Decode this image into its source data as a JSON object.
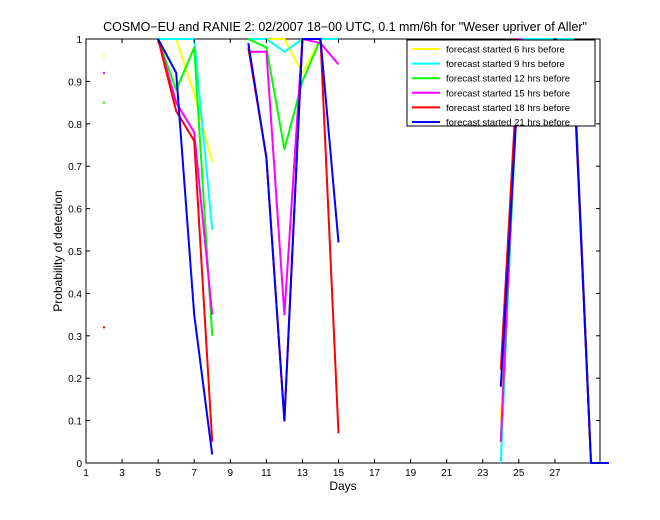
{
  "chart_data": {
    "type": "line",
    "title": "COSMO−EU and RANIE 2: 02/2007 18−00 UTC, 0.1 mm/6h for \"Weser upriver of Aller\"",
    "xlabel": "Days",
    "ylabel": "Probability of detection",
    "xlim": [
      1,
      29.5
    ],
    "ylim": [
      0,
      1
    ],
    "x_ticks": [
      1,
      3,
      5,
      7,
      9,
      11,
      13,
      15,
      17,
      19,
      21,
      23,
      25,
      27
    ],
    "y_ticks": [
      0,
      0.1,
      0.2,
      0.3,
      0.4,
      0.5,
      0.6,
      0.7,
      0.8,
      0.9,
      1
    ],
    "y_tick_labels": [
      "0",
      "0.1",
      "0.2",
      "0.3",
      "0.4",
      "0.5",
      "0.6",
      "0.7",
      "0.8",
      "0.9",
      "1"
    ],
    "grid": false,
    "legend_position": "top-right",
    "series": [
      {
        "name": "forecast started 6 hrs before",
        "color": "#ffff00",
        "segments": [
          [
            [
              2,
              0.96
            ]
          ],
          [
            [
              5,
              1.0
            ],
            [
              6,
              1.0
            ],
            [
              7,
              0.87
            ],
            [
              8,
              0.71
            ]
          ],
          [
            [
              10,
              1.0
            ],
            [
              11,
              1.0
            ],
            [
              12,
              1.0
            ],
            [
              13,
              0.92
            ],
            [
              14,
              1.0
            ],
            [
              15,
              1.0
            ]
          ],
          [
            [
              24,
              0.1
            ],
            [
              25,
              1.0
            ],
            [
              26,
              1.0
            ],
            [
              27,
              1.0
            ],
            [
              28,
              1.0
            ],
            [
              29,
              0.0
            ],
            [
              30,
              0.0
            ]
          ]
        ]
      },
      {
        "name": "forecast started 9 hrs before",
        "color": "#00ffff",
        "segments": [
          [
            [
              2,
              0.92
            ]
          ],
          [
            [
              5,
              1.0
            ],
            [
              6,
              1.0
            ],
            [
              7,
              1.0
            ],
            [
              8,
              0.55
            ]
          ],
          [
            [
              10,
              1.0
            ],
            [
              11,
              1.0
            ],
            [
              12,
              0.97
            ],
            [
              13,
              1.0
            ],
            [
              14,
              1.0
            ],
            [
              15,
              1.0
            ]
          ],
          [
            [
              24,
              0.0
            ],
            [
              25,
              1.0
            ],
            [
              26,
              1.0
            ],
            [
              27,
              1.0
            ],
            [
              28,
              1.0
            ],
            [
              29,
              0.0
            ],
            [
              30,
              0.0
            ]
          ]
        ]
      },
      {
        "name": "forecast started 12 hrs before",
        "color": "#00ff00",
        "segments": [
          [
            [
              2,
              0.85
            ]
          ],
          [
            [
              5,
              1.0
            ],
            [
              6,
              0.88
            ],
            [
              7,
              0.98
            ],
            [
              8,
              0.3
            ]
          ],
          [
            [
              10,
              1.0
            ],
            [
              11,
              0.98
            ],
            [
              12,
              0.74
            ],
            [
              13,
              0.9
            ],
            [
              14,
              1.0
            ]
          ],
          [
            [
              24,
              0.05
            ],
            [
              25,
              0.95
            ],
            [
              26,
              0.98
            ],
            [
              27,
              1.0
            ],
            [
              28,
              0.97
            ],
            [
              29,
              0.0
            ]
          ]
        ]
      },
      {
        "name": "forecast started 15 hrs before",
        "color": "#ff00ff",
        "segments": [
          [
            [
              2,
              0.92
            ]
          ],
          [
            [
              5,
              1.0
            ],
            [
              6,
              0.85
            ],
            [
              7,
              0.78
            ],
            [
              8,
              0.35
            ]
          ],
          [
            [
              10,
              0.97
            ],
            [
              11,
              0.97
            ],
            [
              12,
              0.35
            ],
            [
              13,
              1.0
            ],
            [
              14,
              0.99
            ],
            [
              15,
              0.94
            ]
          ],
          [
            [
              24,
              0.05
            ],
            [
              25,
              1.0
            ],
            [
              26,
              0.99
            ],
            [
              27,
              0.99
            ],
            [
              28,
              0.98
            ],
            [
              29,
              0.0
            ]
          ]
        ]
      },
      {
        "name": "forecast started 18 hrs before",
        "color": "#ff0000",
        "segments": [
          [
            [
              2,
              0.32
            ]
          ],
          [
            [
              5,
              1.0
            ],
            [
              6,
              0.83
            ],
            [
              7,
              0.76
            ],
            [
              8,
              0.05
            ]
          ],
          [
            [
              10,
              0.98
            ],
            [
              11,
              0.72
            ],
            [
              12,
              0.1
            ],
            [
              13,
              1.0
            ],
            [
              14,
              1.0
            ],
            [
              15,
              0.07
            ]
          ],
          [
            [
              24,
              0.22
            ],
            [
              25,
              0.98
            ],
            [
              26,
              0.95
            ],
            [
              27,
              1.0
            ],
            [
              28,
              0.98
            ],
            [
              29,
              0.0
            ]
          ]
        ]
      },
      {
        "name": "forecast started 21 hrs before",
        "color": "#0000ff",
        "segments": [
          [
            [
              5,
              1.0
            ],
            [
              6,
              0.92
            ],
            [
              7,
              0.35
            ],
            [
              8,
              0.02
            ]
          ],
          [
            [
              10,
              0.99
            ],
            [
              11,
              0.72
            ],
            [
              12,
              0.1
            ],
            [
              13,
              1.0
            ],
            [
              14,
              1.0
            ],
            [
              15,
              0.52
            ]
          ],
          [
            [
              24,
              0.18
            ],
            [
              25,
              0.92
            ],
            [
              26,
              0.84
            ],
            [
              27,
              1.0
            ],
            [
              28,
              0.96
            ],
            [
              29,
              0.0
            ],
            [
              30,
              0.0
            ]
          ]
        ]
      }
    ]
  }
}
